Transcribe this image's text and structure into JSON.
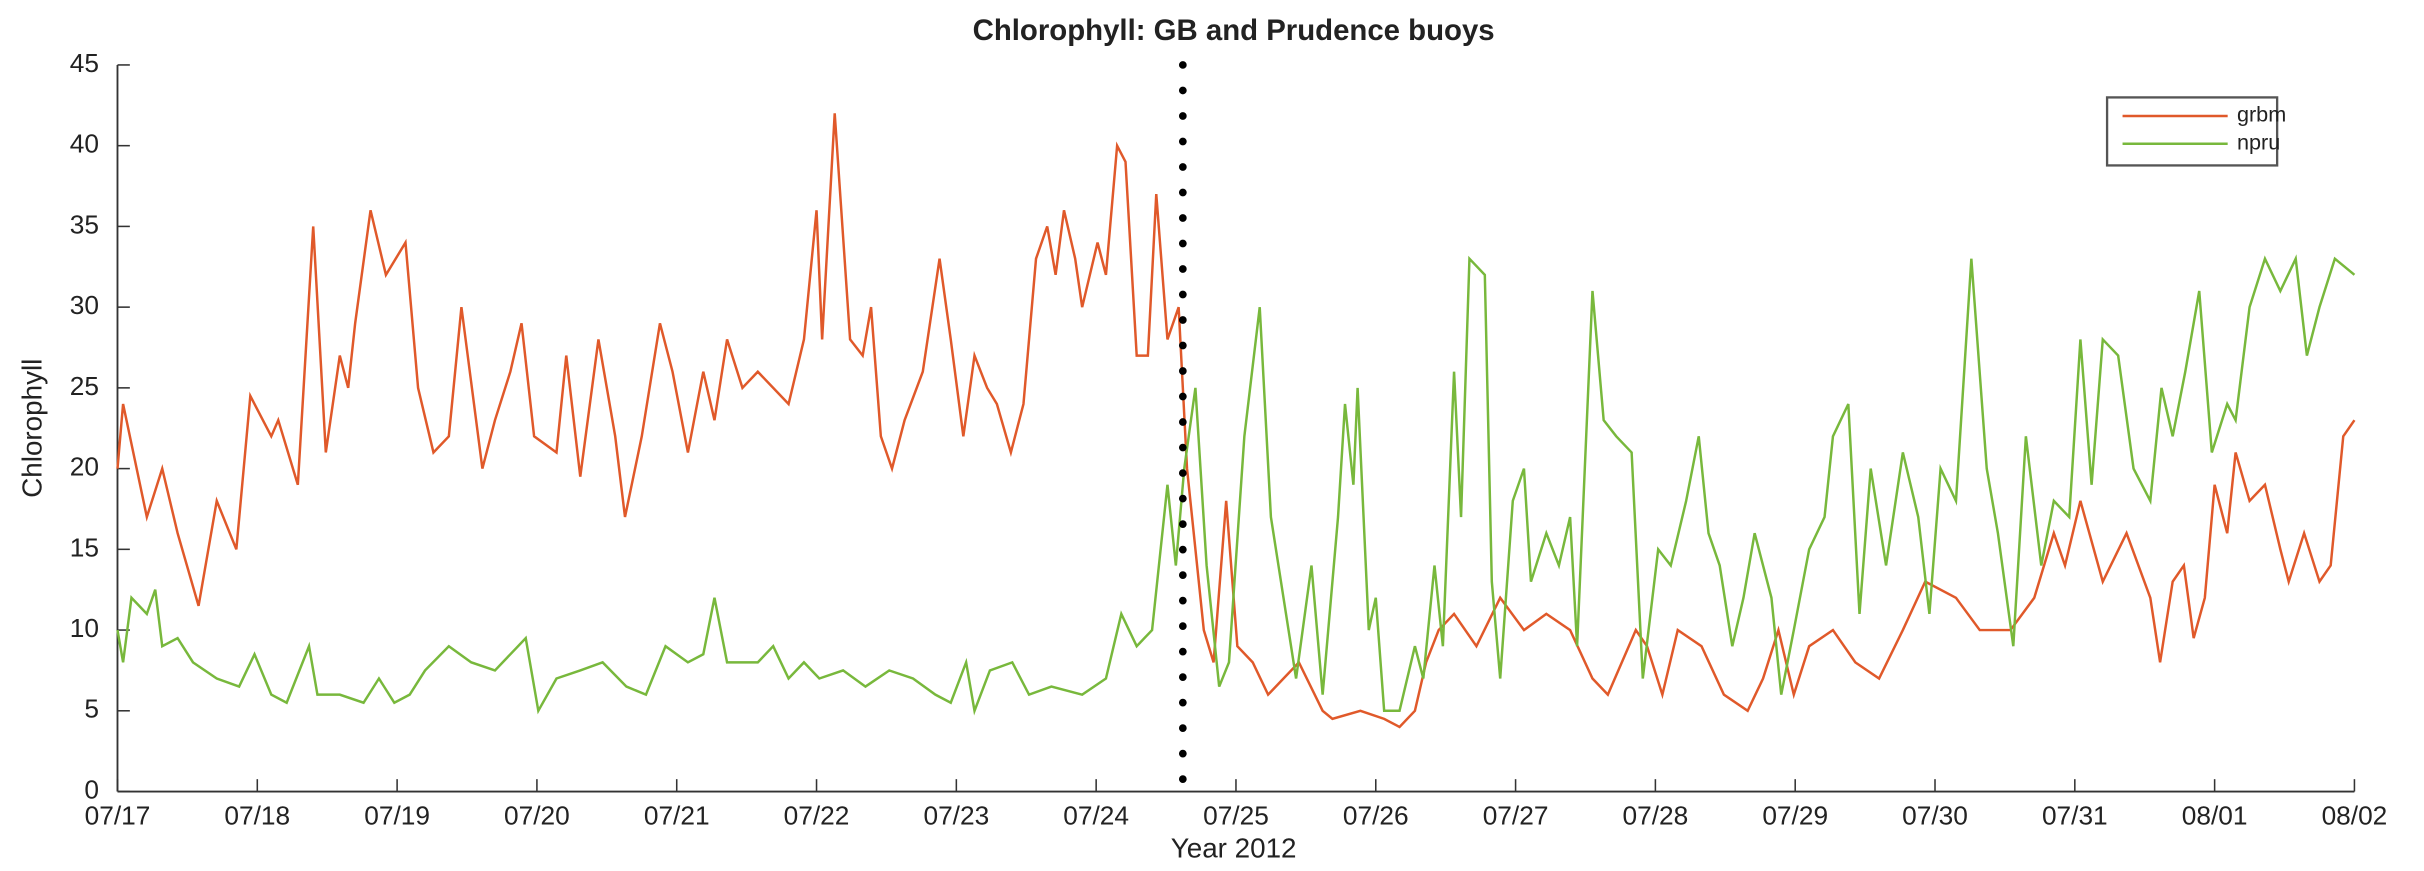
{
  "chart_data": {
    "type": "line",
    "title": "Chlorophyll: GB and Prudence buoys",
    "x_label": "Year 2012",
    "y_label": "Chlorophyll",
    "xlim": [
      0,
      16
    ],
    "xticks": [
      {
        "value": 0,
        "label": "07/17"
      },
      {
        "value": 1,
        "label": "07/18"
      },
      {
        "value": 2,
        "label": "07/19"
      },
      {
        "value": 3,
        "label": "07/20"
      },
      {
        "value": 4,
        "label": "07/21"
      },
      {
        "value": 5,
        "label": "07/22"
      },
      {
        "value": 6,
        "label": "07/23"
      },
      {
        "value": 7,
        "label": "07/24"
      },
      {
        "value": 8,
        "label": "07/25"
      },
      {
        "value": 9,
        "label": "07/26"
      },
      {
        "value": 10,
        "label": "07/27"
      },
      {
        "value": 11,
        "label": "07/28"
      },
      {
        "value": 12,
        "label": "07/29"
      },
      {
        "value": 13,
        "label": "07/30"
      },
      {
        "value": 14,
        "label": "07/31"
      },
      {
        "value": 15,
        "label": "08/01"
      },
      {
        "value": 16,
        "label": "08/02"
      }
    ],
    "ylim": [
      0,
      45
    ],
    "yticks": [
      0,
      5,
      10,
      15,
      20,
      25,
      30,
      35,
      40,
      45
    ],
    "vline": 7.62,
    "legend": "northeast",
    "series": [
      {
        "name": "grbm",
        "color": "#e0592a",
        "x": [
          0,
          0.04,
          0.21,
          0.32,
          0.43,
          0.58,
          0.71,
          0.85,
          0.95,
          1.1,
          1.15,
          1.29,
          1.4,
          1.49,
          1.59,
          1.65,
          1.7,
          1.81,
          1.92,
          2.06,
          2.15,
          2.26,
          2.37,
          2.46,
          2.61,
          2.7,
          2.81,
          2.89,
          2.98,
          3.14,
          3.21,
          3.31,
          3.44,
          3.56,
          3.63,
          3.75,
          3.88,
          3.97,
          4.08,
          4.19,
          4.27,
          4.36,
          4.47,
          4.58,
          4.8,
          4.91,
          5.0,
          5.04,
          5.13,
          5.24,
          5.33,
          5.39,
          5.46,
          5.54,
          5.63,
          5.76,
          5.88,
          5.96,
          6.05,
          6.13,
          6.22,
          6.29,
          6.39,
          6.48,
          6.57,
          6.65,
          6.71,
          6.77,
          6.85,
          6.9,
          7.01,
          7.07,
          7.1,
          7.15,
          7.21,
          7.29,
          7.37,
          7.43,
          7.51,
          7.59,
          7.65,
          7.77,
          7.84,
          7.93,
          8.01,
          8.12,
          8.23,
          8.34,
          8.45,
          8.62,
          8.69,
          8.89,
          9.06,
          9.17,
          9.28,
          9.36,
          9.45,
          9.56,
          9.72,
          9.89,
          10.06,
          10.22,
          10.39,
          10.55,
          10.66,
          10.86,
          10.94,
          11.05,
          11.16,
          11.33,
          11.49,
          11.66,
          11.77,
          11.88,
          11.99,
          12.1,
          12.27,
          12.43,
          12.6,
          12.77,
          12.93,
          13.15,
          13.32,
          13.54,
          13.71,
          13.85,
          13.93,
          14.04,
          14.2,
          14.37,
          14.54,
          14.61,
          14.7,
          14.78,
          14.85,
          14.93,
          15.0,
          15.09,
          15.15,
          15.25,
          15.36,
          15.47,
          15.53,
          15.64,
          15.75,
          15.83,
          15.92,
          16.0
        ],
        "values": [
          20,
          24,
          17,
          20,
          16,
          11.5,
          18,
          15,
          24.5,
          22,
          23,
          19,
          35,
          21,
          27,
          25,
          29,
          36,
          32,
          34,
          25,
          21,
          22,
          30,
          20,
          23,
          26,
          29,
          22,
          21,
          27,
          19.5,
          28,
          22,
          17,
          22,
          29,
          26,
          21,
          26,
          23,
          28,
          25,
          26,
          24,
          28,
          36,
          28,
          42,
          28,
          27,
          30,
          22,
          20,
          23,
          26,
          33,
          28,
          22,
          27,
          25,
          24,
          21,
          24,
          33,
          35,
          32,
          36,
          33,
          30,
          34,
          32,
          35,
          40,
          39,
          27,
          27,
          37,
          28,
          30,
          20,
          10,
          8,
          18,
          9,
          8,
          6,
          7,
          8,
          5,
          4.5,
          5,
          4.5,
          4,
          5,
          8,
          10,
          11,
          9,
          12,
          10,
          11,
          10,
          7,
          6,
          10,
          9,
          6,
          10,
          9,
          6,
          5,
          7,
          10,
          6,
          9,
          10,
          8,
          7,
          10,
          13,
          12,
          10,
          10,
          12,
          16,
          14,
          18,
          13,
          16,
          12,
          8,
          13,
          14,
          9.5,
          12,
          19,
          16,
          21,
          18,
          19,
          15,
          13,
          16,
          13,
          14,
          22,
          23
        ]
      },
      {
        "name": "npru",
        "color": "#78b83c",
        "x": [
          0,
          0.04,
          0.1,
          0.21,
          0.27,
          0.32,
          0.43,
          0.54,
          0.71,
          0.87,
          0.98,
          1.1,
          1.21,
          1.37,
          1.43,
          1.59,
          1.76,
          1.87,
          1.98,
          2.09,
          2.2,
          2.37,
          2.53,
          2.7,
          2.92,
          3.01,
          3.14,
          3.31,
          3.47,
          3.64,
          3.78,
          3.92,
          4.08,
          4.19,
          4.27,
          4.36,
          4.58,
          4.69,
          4.8,
          4.91,
          5.02,
          5.19,
          5.35,
          5.52,
          5.69,
          5.85,
          5.96,
          6.07,
          6.13,
          6.24,
          6.4,
          6.52,
          6.68,
          6.9,
          7.07,
          7.18,
          7.29,
          7.4,
          7.51,
          7.57,
          7.63,
          7.71,
          7.79,
          7.88,
          7.95,
          8.06,
          8.17,
          8.25,
          8.34,
          8.43,
          8.54,
          8.62,
          8.73,
          8.78,
          8.84,
          8.87,
          8.95,
          9.0,
          9.06,
          9.17,
          9.28,
          9.34,
          9.42,
          9.48,
          9.56,
          9.61,
          9.67,
          9.78,
          9.83,
          9.89,
          9.98,
          10.06,
          10.11,
          10.22,
          10.31,
          10.39,
          10.44,
          10.55,
          10.63,
          10.72,
          10.83,
          10.91,
          11.02,
          11.11,
          11.22,
          11.31,
          11.38,
          11.46,
          11.55,
          11.63,
          11.71,
          11.83,
          11.9,
          11.99,
          12.1,
          12.21,
          12.27,
          12.38,
          12.46,
          12.54,
          12.65,
          12.77,
          12.88,
          12.96,
          13.04,
          13.15,
          13.26,
          13.37,
          13.45,
          13.56,
          13.65,
          13.76,
          13.85,
          13.96,
          14.04,
          14.12,
          14.2,
          14.31,
          14.42,
          14.54,
          14.62,
          14.7,
          14.79,
          14.89,
          14.98,
          15.09,
          15.15,
          15.25,
          15.36,
          15.47,
          15.58,
          15.66,
          15.75,
          15.86,
          16.0
        ],
        "values": [
          10,
          8,
          12,
          11,
          12.5,
          9,
          9.5,
          8,
          7,
          6.5,
          8.5,
          6,
          5.5,
          9,
          6,
          6,
          5.5,
          7,
          5.5,
          6,
          7.5,
          9,
          8,
          7.5,
          9.5,
          5,
          7,
          7.5,
          8,
          6.5,
          6,
          9,
          8,
          8.5,
          12,
          8,
          8,
          9,
          7,
          8,
          7,
          7.5,
          6.5,
          7.5,
          7,
          6,
          5.5,
          8,
          5,
          7.5,
          8,
          6,
          6.5,
          6,
          7,
          11,
          9,
          10,
          19,
          14,
          20,
          25,
          14,
          6.5,
          8,
          22,
          30,
          17,
          12,
          7,
          14,
          6,
          17,
          24,
          19,
          25,
          10,
          12,
          5,
          5,
          9,
          7,
          14,
          9,
          26,
          17,
          33,
          32,
          13,
          7,
          18,
          20,
          13,
          16,
          14,
          17,
          9,
          31,
          23,
          22,
          21,
          7,
          15,
          14,
          18,
          22,
          16,
          14,
          9,
          12,
          16,
          12,
          6,
          10,
          15,
          17,
          22,
          24,
          11,
          20,
          14,
          21,
          17,
          11,
          20,
          18,
          33,
          20,
          16,
          9,
          22,
          14,
          18,
          17,
          28,
          19,
          28,
          27,
          20,
          18,
          25,
          22,
          26,
          31,
          21,
          24,
          23,
          30,
          33,
          31,
          33,
          27,
          30,
          33,
          32
        ]
      }
    ]
  }
}
